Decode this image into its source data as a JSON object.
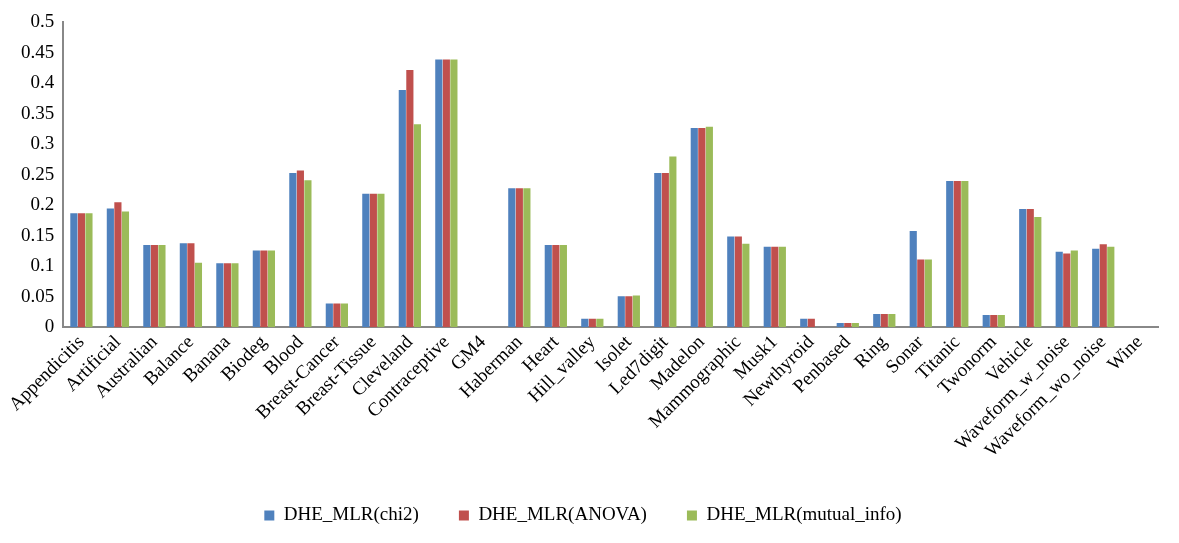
{
  "chart_data": {
    "type": "bar",
    "categories": [
      "Appendicitis",
      "Artificial",
      "Australian",
      "Balance",
      "Banana",
      "Biodeg",
      "Blood",
      "Breast-Cancer",
      "Breast-Tissue",
      "Cleveland",
      "Contraceptive",
      "GM4",
      "Haberman",
      "Heart",
      "Hill_valley",
      "Isolet",
      "Led7digit",
      "Madelon",
      "Mammographic",
      "Musk1",
      "Newthyroid",
      "Penbased",
      "Ring",
      "Sonar",
      "Titanic",
      "Twonorm",
      "Vehicle",
      "Waveform_w_noise",
      "Waveform_wo_noise",
      "Wine"
    ],
    "series": [
      {
        "name": "DHE_MLR(chi2)",
        "color": "#4f81bd",
        "values": [
          0.187,
          0.195,
          0.135,
          0.138,
          0.105,
          0.126,
          0.253,
          0.039,
          0.219,
          0.389,
          0.439,
          0,
          0.228,
          0.135,
          0.014,
          0.051,
          0.253,
          0.327,
          0.149,
          0.132,
          0.014,
          0.007,
          0.022,
          0.158,
          0.24,
          0.02,
          0.194,
          0.124,
          0.129,
          0
        ]
      },
      {
        "name": "DHE_MLR(ANOVA)",
        "color": "#c0504d",
        "values": [
          0.187,
          0.205,
          0.135,
          0.138,
          0.105,
          0.126,
          0.257,
          0.039,
          0.219,
          0.422,
          0.439,
          0,
          0.228,
          0.135,
          0.014,
          0.051,
          0.253,
          0.327,
          0.149,
          0.132,
          0.014,
          0.007,
          0.022,
          0.111,
          0.24,
          0.02,
          0.194,
          0.121,
          0.136,
          0
        ]
      },
      {
        "name": "DHE_MLR(mutual_info)",
        "color": "#9bbb59",
        "values": [
          0.187,
          0.19,
          0.135,
          0.106,
          0.105,
          0.126,
          0.241,
          0.039,
          0.219,
          0.333,
          0.439,
          0,
          0.228,
          0.135,
          0.014,
          0.052,
          0.28,
          0.329,
          0.137,
          0.132,
          0,
          0.007,
          0.022,
          0.111,
          0.24,
          0.02,
          0.181,
          0.126,
          0.132,
          0
        ]
      }
    ],
    "ylim": [
      0,
      0.5
    ],
    "yticks": [
      0,
      0.05,
      0.1,
      0.15,
      0.2,
      0.25,
      0.3,
      0.35,
      0.4,
      0.45,
      0.5
    ],
    "grid": false,
    "legend": "bottom"
  }
}
